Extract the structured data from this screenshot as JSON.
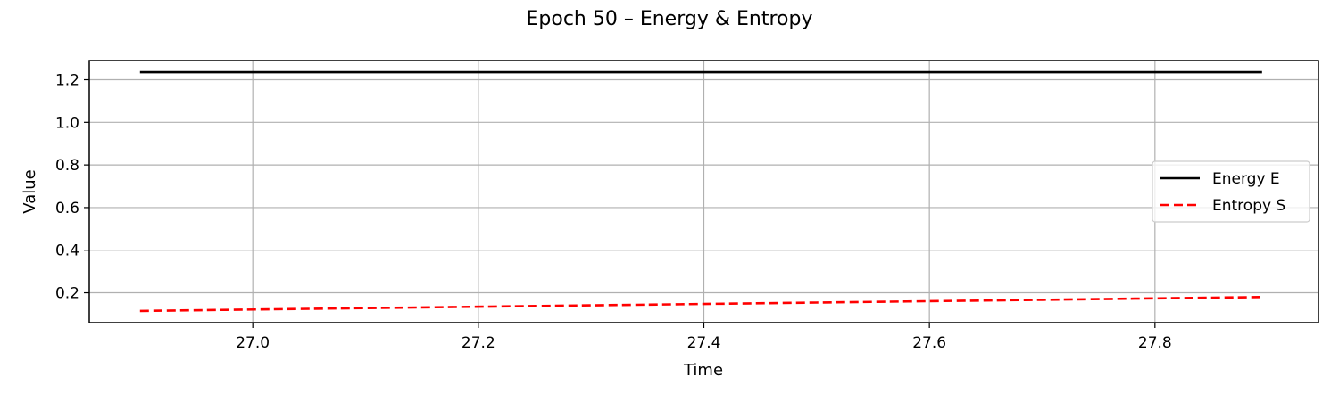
{
  "chart_data": {
    "type": "line",
    "title": "Epoch 50 – Energy & Entropy",
    "xlabel": "Time",
    "ylabel": "Value",
    "xlim": [
      26.855,
      27.945
    ],
    "ylim": [
      0.06,
      1.29
    ],
    "xticks": [
      27.0,
      27.2,
      27.4,
      27.6,
      27.8
    ],
    "xtick_labels": [
      "27.0",
      "27.2",
      "27.4",
      "27.6",
      "27.8"
    ],
    "yticks": [
      0.2,
      0.4,
      0.6,
      0.8,
      1.0,
      1.2
    ],
    "ytick_labels": [
      "0.2",
      "0.4",
      "0.6",
      "0.8",
      "1.0",
      "1.2"
    ],
    "grid": true,
    "legend_position": "center-right",
    "series": [
      {
        "name": "Energy E",
        "color": "#000000",
        "style": "solid",
        "x": [
          26.9,
          27.895
        ],
        "y": [
          1.235,
          1.235
        ]
      },
      {
        "name": "Entropy S",
        "color": "#ff0000",
        "style": "dashed",
        "x": [
          26.9,
          27.1,
          27.3,
          27.5,
          27.7,
          27.895
        ],
        "y": [
          0.115,
          0.128,
          0.141,
          0.154,
          0.167,
          0.18
        ]
      }
    ]
  }
}
